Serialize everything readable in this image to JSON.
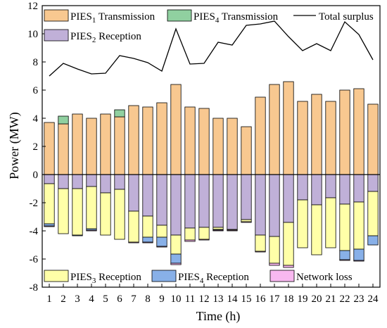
{
  "chart_data": {
    "type": "bar",
    "stacked": true,
    "xlabel": "Time (h)",
    "ylabel": "Power (MW)",
    "ylim": [
      -8,
      12
    ],
    "yticks": [
      -8,
      -6,
      -4,
      -2,
      0,
      2,
      4,
      6,
      8,
      10,
      12
    ],
    "categories": [
      "1",
      "2",
      "3",
      "4",
      "5",
      "6",
      "7",
      "8",
      "9",
      "10",
      "11",
      "12",
      "13",
      "14",
      "15",
      "16",
      "17",
      "18",
      "19",
      "20",
      "21",
      "22",
      "23",
      "24"
    ],
    "series": [
      {
        "name": "PIES1 Transmission",
        "label_main": "PIES",
        "label_sub": "1",
        "label_rest": " Transmission",
        "color": "#F8C890",
        "values": [
          3.7,
          3.6,
          4.3,
          4.0,
          4.3,
          4.1,
          4.9,
          4.8,
          5.1,
          6.4,
          4.8,
          4.7,
          4.0,
          4.0,
          3.4,
          5.5,
          6.4,
          6.6,
          5.2,
          5.7,
          5.2,
          6.0,
          6.1,
          5.0
        ]
      },
      {
        "name": "PIES4 Transmission",
        "label_main": "PIES",
        "label_sub": "4",
        "label_rest": " Transmission",
        "color": "#90D0A0",
        "values": [
          0,
          0.55,
          0,
          0,
          0,
          0.5,
          0,
          0,
          0,
          0,
          0,
          0,
          0,
          0,
          0,
          0,
          0,
          0,
          0,
          0,
          0,
          0,
          0,
          0
        ]
      },
      {
        "name": "PIES2 Reception",
        "label_main": "PIES",
        "label_sub": "2",
        "label_rest": " Reception",
        "color": "#C0B0D8",
        "values": [
          -0.65,
          -1.0,
          -1.0,
          -0.85,
          -1.3,
          -1.05,
          -2.6,
          -2.95,
          -3.6,
          -4.3,
          -3.8,
          -3.75,
          -3.75,
          -3.9,
          -3.2,
          -4.3,
          -4.4,
          -3.4,
          -1.8,
          -2.15,
          -1.65,
          -2.1,
          -1.95,
          -1.2
        ]
      },
      {
        "name": "PIES3 Reception",
        "label_main": "PIES",
        "label_sub": "3",
        "label_rest": " Reception",
        "color": "#FFFFA8",
        "values": [
          -2.85,
          -3.2,
          -3.3,
          -3.0,
          -3.0,
          -3.55,
          -2.2,
          -1.5,
          -0.85,
          -1.35,
          -0.85,
          -0.85,
          -0.15,
          -0.05,
          -0.15,
          -1.15,
          -1.9,
          -3.05,
          -3.4,
          -3.55,
          -3.55,
          -3.3,
          -3.35,
          -3.15
        ]
      },
      {
        "name": "PIES4 Reception",
        "label_main": "PIES",
        "label_sub": "4",
        "label_rest": " Reception",
        "color": "#88B0E8",
        "values": [
          -0.15,
          0,
          -0.05,
          -0.1,
          0,
          0,
          0,
          -0.35,
          -0.65,
          -0.65,
          0,
          0,
          -0.05,
          0,
          0,
          0,
          0,
          0,
          0,
          0,
          0,
          -0.65,
          -0.8,
          -0.65
        ]
      },
      {
        "name": "Network loss",
        "label_main": "Network loss",
        "label_sub": "",
        "label_rest": "",
        "color": "#F8B8F0",
        "values": [
          -0.05,
          0,
          0,
          -0.05,
          0,
          0,
          -0.05,
          -0.05,
          -0.05,
          -0.1,
          -0.1,
          -0.05,
          -0.05,
          -0.05,
          -0.05,
          -0.05,
          -0.15,
          -0.15,
          0,
          0,
          0,
          -0.05,
          -0.05,
          0
        ]
      }
    ],
    "line": {
      "name": "Total surplus",
      "color": "#000000",
      "values": [
        7.0,
        7.9,
        7.5,
        7.15,
        7.2,
        8.45,
        8.25,
        7.95,
        7.35,
        10.35,
        7.85,
        7.9,
        9.4,
        9.2,
        10.6,
        10.7,
        10.9,
        9.8,
        8.8,
        9.3,
        8.8,
        10.85,
        9.95,
        8.15
      ]
    },
    "legend_top_left": [
      "PIES1 Transmission",
      "PIES2 Reception"
    ],
    "legend_top_middle": [
      "PIES4 Transmission"
    ],
    "legend_top_right": [
      "Total surplus"
    ],
    "legend_bottom": [
      "PIES3 Reception",
      "PIES4 Reception",
      "Network loss"
    ]
  }
}
